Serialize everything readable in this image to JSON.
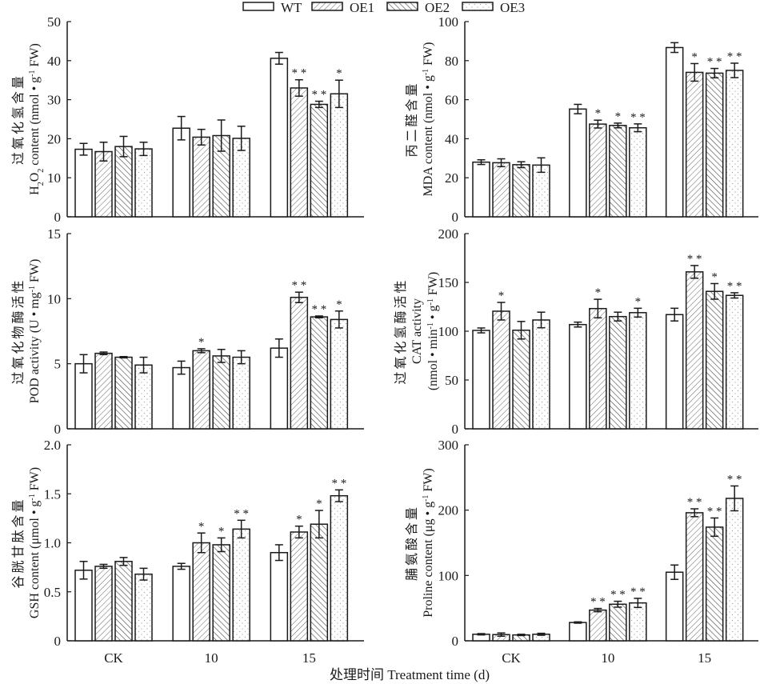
{
  "legend": {
    "items": [
      {
        "name": "WT",
        "pattern": "none"
      },
      {
        "name": "OE1",
        "pattern": "hatch-forward"
      },
      {
        "name": "OE2",
        "pattern": "hatch-backward"
      },
      {
        "name": "OE3",
        "pattern": "dots"
      }
    ],
    "placement": "top-center"
  },
  "xaxis_label": "处理时间 Treatment time (d)",
  "colors": {
    "stroke": "#1a1a1a",
    "hatch": "#555555",
    "dots": "#9a9a9a",
    "fill": "#ffffff"
  },
  "chart_data": [
    {
      "id": "h2o2",
      "type": "bar",
      "title": "",
      "ylabel_cn": "过氧化氢含量",
      "ylabel_en": "H2O2 content (nmol • g⁻¹ FW)",
      "ylabel_en_parts": [
        "H",
        "2",
        "O",
        "2",
        " content (nmol • g",
        "-1",
        " FW)"
      ],
      "categories": [
        "CK",
        "10",
        "15"
      ],
      "ylim": [
        0,
        50
      ],
      "yticks": [
        0,
        10,
        20,
        30,
        40,
        50
      ],
      "grid": false,
      "series": [
        {
          "name": "WT",
          "values": [
            17.3,
            22.7,
            40.6
          ],
          "errors": [
            1.5,
            3.0,
            1.5
          ],
          "sig": [
            "",
            "",
            ""
          ]
        },
        {
          "name": "OE1",
          "values": [
            16.7,
            20.4,
            33.0
          ],
          "errors": [
            2.4,
            2.0,
            2.1
          ],
          "sig": [
            "",
            "",
            "**"
          ]
        },
        {
          "name": "OE2",
          "values": [
            18.0,
            20.8,
            28.8
          ],
          "errors": [
            2.6,
            4.0,
            0.8
          ],
          "sig": [
            "",
            "",
            "**"
          ]
        },
        {
          "name": "OE3",
          "values": [
            17.4,
            20.1,
            31.5
          ],
          "errors": [
            1.7,
            3.1,
            3.5
          ],
          "sig": [
            "",
            "",
            "*"
          ]
        }
      ]
    },
    {
      "id": "mda",
      "type": "bar",
      "title": "",
      "ylabel_cn": "丙二醛含量",
      "ylabel_en": "MDA content (nmol • g⁻¹ FW)",
      "ylabel_en_parts": [
        "MDA content (nmol • g",
        "-1",
        " FW)"
      ],
      "categories": [
        "CK",
        "10",
        "15"
      ],
      "ylim": [
        0,
        100
      ],
      "yticks": [
        0,
        20,
        40,
        60,
        80,
        100
      ],
      "grid": false,
      "series": [
        {
          "name": "WT",
          "values": [
            28.0,
            55.2,
            86.7
          ],
          "errors": [
            1.2,
            2.4,
            2.5
          ],
          "sig": [
            "",
            "",
            ""
          ]
        },
        {
          "name": "OE1",
          "values": [
            27.7,
            47.5,
            74.0
          ],
          "errors": [
            2.0,
            2.0,
            4.5
          ],
          "sig": [
            "",
            "*",
            "*"
          ]
        },
        {
          "name": "OE2",
          "values": [
            26.7,
            46.8,
            73.6
          ],
          "errors": [
            1.5,
            1.2,
            2.4
          ],
          "sig": [
            "",
            "*",
            "**"
          ]
        },
        {
          "name": "OE3",
          "values": [
            26.5,
            45.6,
            75.0
          ],
          "errors": [
            3.7,
            2.0,
            3.7
          ],
          "sig": [
            "",
            "**",
            "**"
          ]
        }
      ]
    },
    {
      "id": "pod",
      "type": "bar",
      "title": "",
      "ylabel_cn": "过氧化物酶活性",
      "ylabel_en": "POD activity (U • mg⁻¹ FW)",
      "ylabel_en_parts": [
        "POD activity (U • mg",
        "-1",
        " FW)"
      ],
      "categories": [
        "CK",
        "10",
        "15"
      ],
      "ylim": [
        0,
        15
      ],
      "yticks": [
        0,
        5,
        10,
        15
      ],
      "grid": false,
      "series": [
        {
          "name": "WT",
          "values": [
            5.0,
            4.7,
            6.2
          ],
          "errors": [
            0.7,
            0.5,
            0.7
          ],
          "sig": [
            "",
            "",
            ""
          ]
        },
        {
          "name": "OE1",
          "values": [
            5.8,
            6.0,
            10.1
          ],
          "errors": [
            0.1,
            0.15,
            0.4
          ],
          "sig": [
            "",
            "*",
            "**"
          ]
        },
        {
          "name": "OE2",
          "values": [
            5.5,
            5.6,
            8.6
          ],
          "errors": [
            0.05,
            0.5,
            0.07
          ],
          "sig": [
            "",
            "",
            "**"
          ]
        },
        {
          "name": "OE3",
          "values": [
            4.9,
            5.5,
            8.4
          ],
          "errors": [
            0.6,
            0.5,
            0.65
          ],
          "sig": [
            "",
            "",
            "*"
          ]
        }
      ]
    },
    {
      "id": "cat",
      "type": "bar",
      "title": "",
      "ylabel_cn": "过氧化氢酶活性",
      "ylabel_en": "CAT activity",
      "ylabel_unit": "(nmol • min⁻¹ • g⁻¹ FW)",
      "ylabel_unit_parts": [
        "(nmol • min",
        "-1",
        " • g",
        "-1",
        " FW)"
      ],
      "categories": [
        "CK",
        "10",
        "15"
      ],
      "ylim": [
        0,
        200
      ],
      "yticks": [
        0,
        50,
        100,
        150,
        200
      ],
      "grid": false,
      "series": [
        {
          "name": "WT",
          "values": [
            100.8,
            106.8,
            117.0
          ],
          "errors": [
            2.5,
            2.5,
            6.5
          ],
          "sig": [
            "",
            "",
            ""
          ]
        },
        {
          "name": "OE1",
          "values": [
            120.5,
            123.2,
            160.8
          ],
          "errors": [
            9.0,
            9.5,
            6.5
          ],
          "sig": [
            "*",
            "*",
            "**"
          ]
        },
        {
          "name": "OE2",
          "values": [
            101.0,
            115.0,
            140.8
          ],
          "errors": [
            9.0,
            4.5,
            8.0
          ],
          "sig": [
            "",
            "",
            "*"
          ]
        },
        {
          "name": "OE3",
          "values": [
            111.5,
            119.0,
            136.7
          ],
          "errors": [
            8.0,
            4.5,
            2.7
          ],
          "sig": [
            "",
            "*",
            "**"
          ]
        }
      ]
    },
    {
      "id": "gsh",
      "type": "bar",
      "title": "",
      "ylabel_cn": "谷胱甘肽含量",
      "ylabel_en": "GSH content (μmol • g⁻¹ FW)",
      "ylabel_en_parts": [
        "GSH content (μmol • g",
        "-1",
        " FW)"
      ],
      "categories": [
        "CK",
        "10",
        "15"
      ],
      "ylim": [
        0,
        2.0
      ],
      "yticks": [
        0,
        0.5,
        1.0,
        1.5,
        2.0
      ],
      "ytick_labels": [
        "0",
        "0.5",
        "1.0",
        "1.5",
        "2.0"
      ],
      "grid": false,
      "series": [
        {
          "name": "WT",
          "values": [
            0.72,
            0.76,
            0.9
          ],
          "errors": [
            0.09,
            0.03,
            0.08
          ],
          "sig": [
            "",
            "",
            ""
          ]
        },
        {
          "name": "OE1",
          "values": [
            0.76,
            1.0,
            1.11
          ],
          "errors": [
            0.02,
            0.1,
            0.06
          ],
          "sig": [
            "",
            "*",
            "*"
          ]
        },
        {
          "name": "OE2",
          "values": [
            0.81,
            0.98,
            1.19
          ],
          "errors": [
            0.04,
            0.07,
            0.14
          ],
          "sig": [
            "",
            "*",
            "*"
          ]
        },
        {
          "name": "OE3",
          "values": [
            0.68,
            1.14,
            1.48
          ],
          "errors": [
            0.06,
            0.09,
            0.06
          ],
          "sig": [
            "",
            "**",
            "**"
          ]
        }
      ]
    },
    {
      "id": "proline",
      "type": "bar",
      "title": "",
      "ylabel_cn": "脯氨酸含量",
      "ylabel_en": "Proline content (μg • g⁻¹ FW)",
      "ylabel_en_parts": [
        "Proline content (μg • g",
        "-1",
        " FW)"
      ],
      "categories": [
        "CK",
        "10",
        "15"
      ],
      "ylim": [
        0,
        300
      ],
      "yticks": [
        0,
        100,
        200,
        300
      ],
      "grid": false,
      "series": [
        {
          "name": "WT",
          "values": [
            10.0,
            28.0,
            105.0
          ],
          "errors": [
            1.0,
            1.0,
            11.0
          ],
          "sig": [
            "",
            "",
            ""
          ]
        },
        {
          "name": "OE1",
          "values": [
            9.5,
            47.0,
            196.0
          ],
          "errors": [
            2.5,
            2.5,
            6.0
          ],
          "sig": [
            "",
            "**",
            "**"
          ]
        },
        {
          "name": "OE2",
          "values": [
            9.0,
            56.0,
            174.0
          ],
          "errors": [
            1.0,
            4.5,
            14.0
          ],
          "sig": [
            "",
            "**",
            "**"
          ]
        },
        {
          "name": "OE3",
          "values": [
            10.0,
            58.0,
            218.0
          ],
          "errors": [
            1.5,
            7.0,
            19.0
          ],
          "sig": [
            "",
            "**",
            "**"
          ]
        }
      ]
    }
  ]
}
